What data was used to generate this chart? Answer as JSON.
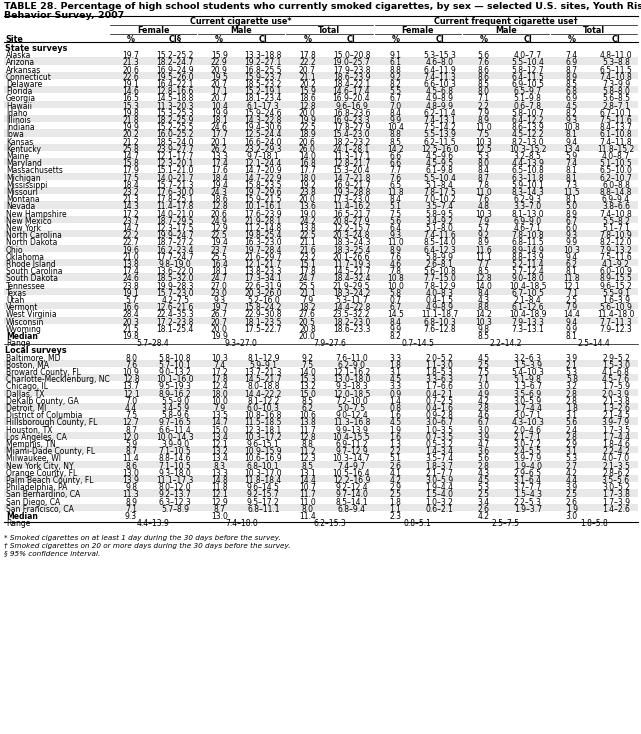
{
  "title_line1": "TABLE 28. Percentage of high school students who currently smoked cigarettes, by sex — selected U.S. sites, Youth Risk",
  "title_line2": "Behavior Survey, 2007",
  "section1_header": "State surveys",
  "rows_state": [
    [
      "Alaska",
      "19.7",
      "15.2–25.2",
      "15.9",
      "13.3–18.8",
      "17.8",
      "15.0–20.8",
      "9.1",
      "5.3–15.3",
      "5.6",
      "4.0–7.7",
      "7.4",
      "4.8–11.0"
    ],
    [
      "Arizona",
      "21.3",
      "18.2–24.7",
      "22.9",
      "19.2–27.1",
      "22.2",
      "19.0–25.7",
      "6.1",
      "4.6–8.0",
      "7.6",
      "5.5–10.4",
      "6.9",
      "5.3–8.8"
    ],
    [
      "Arkansas",
      "20.6",
      "16.9–24.9",
      "20.9",
      "16.8–25.5",
      "20.7",
      "17.9–23.8",
      "8.8",
      "6.4–11.9",
      "8.6",
      "5.8–12.7",
      "8.7",
      "6.5–11.5"
    ],
    [
      "Connecticut",
      "22.6",
      "19.5–26.0",
      "19.5",
      "15.9–23.7",
      "21.1",
      "18.6–23.9",
      "9.2",
      "7.4–11.3",
      "8.6",
      "6.4–11.5",
      "8.9",
      "7.4–10.8"
    ],
    [
      "Delaware",
      "19.1",
      "16.4–22.1",
      "20.7",
      "18.5–23.2",
      "20.2",
      "18.4–22.1",
      "8.2",
      "6.6–10.3",
      "8.5",
      "6.9–10.5",
      "8.5",
      "7.3–9.9"
    ],
    [
      "Florida",
      "14.6",
      "12.8–16.6",
      "17.1",
      "15.2–19.1",
      "15.9",
      "14.6–17.4",
      "5.5",
      "4.5–6.8",
      "8.0",
      "6.5–9.7",
      "6.8",
      "5.8–8.0"
    ],
    [
      "Georgia",
      "16.5",
      "14.5–18.8",
      "20.7",
      "18.1–23.4",
      "18.6",
      "16.9–20.4",
      "6.7",
      "4.9–8.9",
      "7.1",
      "5.1–9.8",
      "6.9",
      "5.6–8.5"
    ],
    [
      "Hawaii",
      "15.3",
      "11.3–20.3",
      "10.4",
      "6.1–17.3",
      "12.8",
      "9.6–16.9",
      "7.0",
      "4.8–9.9",
      "2.2",
      "0.6–7.8",
      "4.5",
      "2.8–7.1"
    ],
    [
      "Idaho",
      "19.8",
      "15.3–25.3",
      "19.9",
      "15.9–24.6",
      "20.0",
      "16.8–23.6",
      "8.4",
      "6.2–11.4",
      "7.9",
      "5.8–10.7",
      "8.2",
      "6.7–10.1"
    ],
    [
      "Illinois",
      "21.8",
      "18.2–25.9",
      "18.1",
      "14.3–22.8",
      "19.9",
      "16.9–23.3",
      "9.9",
      "7.4–13.1",
      "8.9",
      "6.4–12.2",
      "9.3",
      "7.5–11.6"
    ],
    [
      "Indiana",
      "19.9",
      "15.2–25.5",
      "24.6",
      "19.4–30.6",
      "22.5",
      "17.8–27.9",
      "10.4",
      "7.5–14.2",
      "11.0",
      "8.6–13.9",
      "10.8",
      "8.4–13.7"
    ],
    [
      "Iowa",
      "20.2",
      "16.0–25.2",
      "17.7",
      "12.5–24.4",
      "18.9",
      "15.4–23.0",
      "8.8",
      "5.5–13.9",
      "7.5",
      "4.5–12.2",
      "8.1",
      "6.1–10.8"
    ],
    [
      "Kansas",
      "21.2",
      "18.5–24.0",
      "20.1",
      "16.6–24.0",
      "20.6",
      "18.2–23.2",
      "8.5",
      "6.2–11.5",
      "10.3",
      "8.2–13.0",
      "9.4",
      "7.4–11.8"
    ],
    [
      "Kentucky",
      "25.8",
      "23.9–27.7",
      "26.2",
      "23.2–29.3",
      "26.0",
      "24.1–28.1",
      "14.2",
      "12.5–16.0",
      "12.5",
      "10.3–15.2",
      "13.4",
      "11.8–15.2"
    ],
    [
      "Maine",
      "14.7",
      "12.1–17.7",
      "13.3",
      "9.7–18.1",
      "14.0",
      "11.3–17.1",
      "6.6",
      "4.5–9.6",
      "5.3",
      "3.2–8.5",
      "5.9",
      "4.0–8.7"
    ],
    [
      "Maryland",
      "15.8",
      "12.3–20.1",
      "17.4",
      "12.1–24.4",
      "16.8",
      "12.8–21.7",
      "6.6",
      "4.5–9.5",
      "8.0",
      "4.4–13.9",
      "7.4",
      "5.1–10.5"
    ],
    [
      "Massachusetts",
      "17.9",
      "15.1–21.0",
      "17.6",
      "14.7–20.9",
      "17.7",
      "15.3–20.4",
      "7.7",
      "6.1–9.8",
      "8.4",
      "6.5–10.8",
      "8.1",
      "6.5–10.0"
    ],
    [
      "Michigan",
      "17.5",
      "14.0–21.7",
      "18.4",
      "14.7–22.9",
      "18.0",
      "14.7–21.8",
      "7.6",
      "5.5–10.4",
      "8.7",
      "6.3–11.8",
      "8.1",
      "6.2–10.7"
    ],
    [
      "Mississippi",
      "18.4",
      "15.7–21.3",
      "19.4",
      "15.8–23.5",
      "19.2",
      "16.9–21.7",
      "6.5",
      "5.1–8.4",
      "7.8",
      "5.9–10.1",
      "7.3",
      "6.0–8.8"
    ],
    [
      "Missouri",
      "23.2",
      "17.6–30.0",
      "24.3",
      "19.7–29.6",
      "23.8",
      "19.3–28.8",
      "11.8",
      "7.8–17.5",
      "11.0",
      "8.3–14.3",
      "11.5",
      "8.8–14.8"
    ],
    [
      "Montana",
      "21.3",
      "17.8–25.1",
      "18.6",
      "15.9–21.5",
      "20.0",
      "17.3–23.0",
      "8.4",
      "7.0–10.2",
      "7.6",
      "6.2–9.3",
      "8.1",
      "6.9–9.4"
    ],
    [
      "Nevada",
      "14.3",
      "11.4–17.8",
      "12.8",
      "10.1–16.1",
      "13.6",
      "11.4–16.2",
      "5.1",
      "3.5–7.4",
      "4.8",
      "3.3–7.0",
      "5.0",
      "3.8–6.6"
    ],
    [
      "New Hampshire",
      "17.2",
      "14.0–21.0",
      "20.6",
      "17.6–23.9",
      "19.0",
      "16.5–21.7",
      "7.5",
      "5.8–9.5",
      "10.3",
      "8.1–13.0",
      "8.9",
      "7.4–10.8"
    ],
    [
      "New Mexico",
      "23.7",
      "18.7–29.5",
      "24.9",
      "21.9–28.1",
      "24.2",
      "20.8–27.9",
      "5.6",
      "3.4–9.2",
      "7.9",
      "6.9–9.0",
      "6.7",
      "5.5–8.2"
    ],
    [
      "New York",
      "14.7",
      "12.3–17.5",
      "12.9",
      "11.2–14.8",
      "13.8",
      "12.2–15.7",
      "6.4",
      "5.1–8.0",
      "5.7",
      "4.6–7.1",
      "6.0",
      "5.1–7.1"
    ],
    [
      "North Carolina",
      "22.2",
      "19.9–24.7",
      "22.5",
      "19.8–25.4",
      "22.5",
      "20.3–24.8",
      "9.3",
      "7.4–11.6",
      "9.2",
      "7.8–10.8",
      "9.3",
      "7.8–10.9"
    ],
    [
      "North Dakota",
      "22.7",
      "18.7–27.2",
      "19.4",
      "16.3–23.0",
      "21.1",
      "18.3–24.3",
      "11.0",
      "8.5–14.0",
      "8.9",
      "6.8–11.5",
      "9.9",
      "8.2–12.0"
    ],
    [
      "Ohio",
      "19.6",
      "16.2–23.4",
      "23.7",
      "19.7–28.4",
      "21.6",
      "18.3–25.4",
      "8.9",
      "6.4–12.3",
      "11.6",
      "8.9–14.9",
      "10.3",
      "7.9–13.2"
    ],
    [
      "Oklahoma",
      "21.0",
      "17.7–24.7",
      "25.5",
      "21.6–29.7",
      "23.2",
      "20.1–26.6",
      "7.6",
      "5.8–9.9",
      "11.1",
      "8.8–13.9",
      "9.4",
      "7.5–11.6"
    ],
    [
      "Rhode Island",
      "13.8",
      "9.8–19.0",
      "16.4",
      "12.1–21.7",
      "15.1",
      "11.7–19.3",
      "4.6",
      "2.6–8.1",
      "7.7",
      "5.2–11.4",
      "6.2",
      "4.1–9.2"
    ],
    [
      "South Carolina",
      "17.4",
      "13.6–22.0",
      "18.1",
      "13.8–23.3",
      "17.8",
      "14.5–21.7",
      "7.8",
      "5.6–10.8",
      "8.5",
      "5.7–12.4",
      "8.1",
      "6.0–10.9"
    ],
    [
      "South Dakota",
      "24.6",
      "18.5–32.0",
      "24.7",
      "17.3–34.1",
      "24.7",
      "18.4–32.4",
      "10.8",
      "7.7–15.0",
      "12.8",
      "9.0–18.0",
      "11.8",
      "8.9–15.5"
    ],
    [
      "Tennessee",
      "23.8",
      "19.9–28.3",
      "27.0",
      "22.6–31.9",
      "25.5",
      "21.9–29.5",
      "10.0",
      "7.8–12.9",
      "14.0",
      "10.4–18.5",
      "12.1",
      "9.6–15.2"
    ],
    [
      "Texas",
      "19.1",
      "15.7–23.0",
      "23.0",
      "20.3–26.0",
      "21.1",
      "18.3–24.2",
      "5.8",
      "4.0–8.3",
      "8.4",
      "6.7–10.5",
      "7.1",
      "5.5–9.1"
    ],
    [
      "Utah",
      "5.7",
      "4.2–7.5",
      "9.3",
      "5.2–16.0",
      "7.9",
      "5.3–11.7",
      "0.7",
      "0.4–1.5",
      "4.3",
      "2.1–8.4",
      "2.5",
      "1.6–3.9"
    ],
    [
      "Vermont",
      "16.6",
      "12.6–21.6",
      "19.7",
      "15.8–24.2",
      "18.2",
      "14.4–22.8",
      "6.7",
      "4.9–8.9",
      "8.8",
      "6.1–12.6",
      "7.9",
      "5.6–10.9"
    ],
    [
      "West Virginia",
      "28.4",
      "22.4–35.3",
      "26.7",
      "22.9–30.8",
      "27.6",
      "23.5–32.2",
      "14.5",
      "11.1–18.7",
      "14.2",
      "10.4–18.9",
      "14.4",
      "11.4–18.0"
    ],
    [
      "Wisconsin",
      "20.3",
      "17.2–23.8",
      "20.7",
      "18.1–23.5",
      "20.5",
      "18.2–23.0",
      "8.4",
      "6.8–10.3",
      "10.3",
      "7.9–13.3",
      "9.4",
      "7.7–11.3"
    ],
    [
      "Wyoming",
      "21.5",
      "18.1–25.4",
      "20.0",
      "17.5–22.7",
      "20.8",
      "18.6–23.3",
      "9.9",
      "7.6–12.8",
      "9.8",
      "7.3–13.1",
      "9.9",
      "7.9–12.3"
    ]
  ],
  "median_state": [
    "Median",
    "19.8",
    "",
    "19.9",
    "",
    "20.0",
    "",
    "8.2",
    "",
    "8.5",
    "",
    "8.1",
    ""
  ],
  "range_state": [
    "Range",
    "5.7–28.4",
    "",
    "9.3–27.0",
    "",
    "7.9–27.6",
    "",
    "0.7–14.5",
    "",
    "2.2–14.2",
    "",
    "2.5–14.4",
    ""
  ],
  "section2_header": "Local surveys",
  "rows_local": [
    [
      "Baltimore, MD",
      "8.0",
      "5.8–10.8",
      "10.3",
      "8.1–12.9",
      "9.2",
      "7.6–11.0",
      "3.3",
      "2.0–5.2",
      "4.5",
      "3.2–6.3",
      "3.9",
      "2.9–5.2"
    ],
    [
      "Boston, MA",
      "7.6",
      "5.7–10.1",
      "7.4",
      "5.9–9.1",
      "7.5",
      "6.2–9.0",
      "1.8",
      "1.1–3.0",
      "2.5",
      "1.5–3.9",
      "2.1",
      "1.5–3.0"
    ],
    [
      "Broward County, FL",
      "10.9",
      "9.0–13.2",
      "17.2",
      "13.7–21.3",
      "14.0",
      "12.1–16.2",
      "3.1",
      "1.8–5.3",
      "7.5",
      "5.4–10.3",
      "5.3",
      "4.1–6.8"
    ],
    [
      "Charlotte-Mecklenburg, NC",
      "12.8",
      "10.1–16.0",
      "17.8",
      "14.5–21.7",
      "15.3",
      "13.0–18.0",
      "4.5",
      "3.3–6.3",
      "7.1",
      "5.1–9.8",
      "5.8",
      "4.5–7.6"
    ],
    [
      "Chicago, IL",
      "13.7",
      "9.5–19.3",
      "12.4",
      "8.0–18.8",
      "13.2",
      "9.3–18.3",
      "3.3",
      "1.7–6.6",
      "3.0",
      "1.3–6.7",
      "3.2",
      "1.7–5.9"
    ],
    [
      "Dallas, TX",
      "12.1",
      "8.9–16.2",
      "18.0",
      "14.4–22.2",
      "15.0",
      "12.0–18.5",
      "0.9",
      "0.4–2.1",
      "4.9",
      "3.5–6.9",
      "2.8",
      "2.0–3.9"
    ],
    [
      "DeKalb County, GA",
      "7.0",
      "5.5–9.0",
      "10.0",
      "8.1–12.2",
      "8.5",
      "7.2–10.0",
      "1.4",
      "0.7–2.5",
      "4.2",
      "3.0–5.9",
      "2.8",
      "2.1–3.8"
    ],
    [
      "Detroit, MI",
      "4.4",
      "3.4–5.9",
      "7.9",
      "6.0–10.3",
      "6.2",
      "5.0–7.5",
      "0.8",
      "0.4–1.6",
      "2.8",
      "1.7–4.4",
      "1.8",
      "1.3–2.6"
    ],
    [
      "District of Columbia",
      "7.5",
      "5.8–9.6",
      "13.5",
      "10.8–16.8",
      "10.6",
      "9.0–12.4",
      "1.6",
      "0.9–2.8",
      "4.6",
      "3.0–7.1",
      "3.1",
      "2.1–4.5"
    ],
    [
      "Hillsborough County, FL",
      "12.7",
      "9.7–16.5",
      "14.7",
      "11.5–18.5",
      "13.8",
      "11.3–16.8",
      "4.5",
      "3.0–6.7",
      "6.7",
      "4.3–10.3",
      "5.6",
      "3.9–7.9"
    ],
    [
      "Houston, TX",
      "8.7",
      "6.6–11.4",
      "15.0",
      "12.3–18.1",
      "11.7",
      "9.9–13.9",
      "1.9",
      "1.0–3.5",
      "3.0",
      "2.0–4.6",
      "2.4",
      "1.7–3.5"
    ],
    [
      "Los Angeles, CA",
      "12.0",
      "10.0–14.3",
      "13.4",
      "10.3–17.2",
      "12.8",
      "10.4–15.5",
      "1.6",
      "0.7–3.5",
      "3.9",
      "2.1–7.1",
      "2.8",
      "1.7–4.4"
    ],
    [
      "Memphis, TN",
      "5.9",
      "3.9–9.0",
      "12.1",
      "9.6–15.1",
      "8.8",
      "6.9–11.2",
      "1.3",
      "0.5–3.2",
      "4.7",
      "3.0–7.2",
      "2.9",
      "1.8–4.6"
    ],
    [
      "Miami-Dade County, FL",
      "8.7",
      "7.1–10.5",
      "13.2",
      "10.9–15.9",
      "11.2",
      "9.7–12.9",
      "2.2",
      "1.4–3.4",
      "3.6",
      "2.4–5.5",
      "3.1",
      "2.2–4.2"
    ],
    [
      "Milwaukee, WI",
      "11.4",
      "8.8–14.6",
      "13.4",
      "10.6–16.9",
      "12.3",
      "10.3–14.7",
      "5.1",
      "3.5–7.4",
      "5.6",
      "3.9–7.9",
      "5.3",
      "4.0–7.0"
    ],
    [
      "New York City, NY",
      "8.6",
      "7.1–10.5",
      "8.3",
      "6.8–10.1",
      "8.5",
      "7.4–9.7",
      "2.6",
      "1.8–3.7",
      "2.8",
      "1.9–4.0",
      "2.7",
      "2.1–3.5"
    ],
    [
      "Orange County, FL",
      "13.0",
      "9.3–18.0",
      "13.3",
      "10.3–17.0",
      "13.1",
      "10.5–16.4",
      "4.1",
      "2.1–7.7",
      "4.3",
      "2.9–6.5",
      "4.2",
      "2.8–6.2"
    ],
    [
      "Palm Beach County, FL",
      "13.9",
      "11.1–17.3",
      "14.8",
      "11.8–18.4",
      "14.4",
      "12.2–16.9",
      "4.2",
      "3.0–5.9",
      "4.5",
      "3.1–6.4",
      "4.4",
      "3.5–5.6"
    ],
    [
      "Philadelphia, PA",
      "9.8",
      "8.0–12.0",
      "11.8",
      "9.6–14.5",
      "10.7",
      "9.2–12.4",
      "2.9",
      "1.9–4.4",
      "5.3",
      "3.7–7.7",
      "3.9",
      "3.0–5.2"
    ],
    [
      "San Bernardino, CA",
      "11.3",
      "9.2–13.7",
      "12.1",
      "9.2–15.7",
      "11.7",
      "9.7–14.0",
      "2.5",
      "1.5–4.0",
      "2.5",
      "1.5–4.3",
      "2.5",
      "1.7–3.8"
    ],
    [
      "San Diego, CA",
      "8.9",
      "6.3–12.3",
      "12.9",
      "9.5–17.2",
      "11.0",
      "8.5–14.1",
      "1.8",
      "1.0–3.2",
      "3.4",
      "2.2–5.3",
      "2.6",
      "1.7–3.9"
    ],
    [
      "San Francisco, CA",
      "7.1",
      "5.7–8.9",
      "8.7",
      "6.8–11.1",
      "8.0",
      "6.8–9.4",
      "1.1",
      "0.6–2.1",
      "2.6",
      "1.9–3.7",
      "1.9",
      "1.4–2.6"
    ]
  ],
  "median_local": [
    "Median",
    "9.3",
    "",
    "13.0",
    "",
    "11.4",
    "",
    "2.3",
    "",
    "4.2",
    "",
    "3.0",
    ""
  ],
  "range_local": [
    "Range",
    "4.4–13.9",
    "",
    "7.4–18.0",
    "",
    "6.2–15.3",
    "",
    "0.8–5.1",
    "",
    "2.5–7.5",
    "",
    "1.8–5.8",
    ""
  ],
  "footnotes": [
    "* Smoked cigarettes on at least 1 day during the 30 days before the survey.",
    "† Smoked cigarettes on 20 or more days during the 30 days before the survey.",
    "§ 95% confidence interval."
  ],
  "bg_color": "#ffffff",
  "text_color": "#000000"
}
